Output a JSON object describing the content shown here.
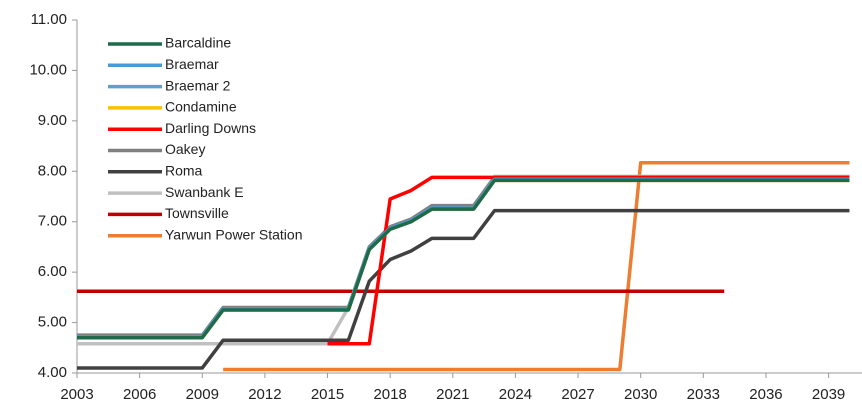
{
  "chart_data": {
    "type": "line",
    "x": [
      2003,
      2004,
      2005,
      2006,
      2007,
      2008,
      2009,
      2010,
      2011,
      2012,
      2013,
      2014,
      2015,
      2016,
      2017,
      2018,
      2019,
      2020,
      2021,
      2022,
      2023,
      2024,
      2025,
      2026,
      2027,
      2028,
      2029,
      2030,
      2031,
      2032,
      2033,
      2034,
      2035,
      2036,
      2037,
      2038,
      2039,
      2040
    ],
    "xlim": [
      2003,
      2040.6
    ],
    "xticks": [
      2003,
      2006,
      2009,
      2012,
      2015,
      2018,
      2021,
      2024,
      2027,
      2030,
      2033,
      2036,
      2039
    ],
    "ylim": [
      4,
      11
    ],
    "yticks": [
      {
        "value": 4,
        "label": "4.00"
      },
      {
        "value": 5,
        "label": "5.00"
      },
      {
        "value": 6,
        "label": "6.00"
      },
      {
        "value": 7,
        "label": "7.00"
      },
      {
        "value": 8,
        "label": "8.00"
      },
      {
        "value": 9,
        "label": "9.00"
      },
      {
        "value": 10,
        "label": "10.00"
      },
      {
        "value": 11,
        "label": "11.00"
      }
    ],
    "grid": false,
    "legend": "upper left",
    "series": [
      {
        "name": "Barcaldine",
        "color": "#1e6b4c",
        "values": [
          4.7,
          4.7,
          4.7,
          4.7,
          4.7,
          4.7,
          4.7,
          5.25,
          5.25,
          5.25,
          5.25,
          5.25,
          5.25,
          5.25,
          6.45,
          6.85,
          7.0,
          7.25,
          7.25,
          7.25,
          7.82,
          7.82,
          7.82,
          7.82,
          7.82,
          7.82,
          7.82,
          7.82,
          7.82,
          7.82,
          7.82,
          7.82,
          7.82,
          7.82,
          7.82,
          7.82,
          7.82,
          7.82
        ]
      },
      {
        "name": "Braemar",
        "color": "#4a9bd1",
        "values": [
          4.72,
          4.72,
          4.72,
          4.72,
          4.72,
          4.72,
          4.72,
          5.27,
          5.27,
          5.27,
          5.27,
          5.27,
          5.27,
          5.27,
          6.47,
          6.87,
          7.02,
          7.27,
          7.27,
          7.27,
          7.84,
          7.84,
          7.84,
          7.84,
          7.84,
          7.84,
          7.84,
          7.84,
          7.84,
          7.84,
          7.84,
          7.84,
          7.84,
          7.84,
          7.84,
          7.84,
          7.84,
          7.84
        ]
      },
      {
        "name": "Braemar 2",
        "color": "#5fa0c8",
        "values": [
          4.72,
          4.72,
          4.72,
          4.72,
          4.72,
          4.72,
          4.72,
          5.27,
          5.27,
          5.27,
          5.27,
          5.27,
          5.27,
          5.27,
          6.47,
          6.87,
          7.02,
          7.27,
          7.27,
          7.27,
          7.84,
          7.84,
          7.84,
          7.84,
          7.84,
          7.84,
          7.84,
          7.84,
          7.84,
          7.84,
          7.84,
          7.84,
          7.84,
          7.84,
          7.84,
          7.84,
          7.84,
          7.84
        ]
      },
      {
        "name": "Condamine",
        "color": "#ffc000",
        "values": [
          4.7,
          4.7,
          4.7,
          4.7,
          4.7,
          4.7,
          4.7,
          5.25,
          5.25,
          5.25,
          5.25,
          5.25,
          5.25,
          5.25,
          6.45,
          6.85,
          7.0,
          7.25,
          7.25,
          7.25,
          7.82,
          7.82,
          7.82,
          7.82,
          7.82,
          7.82,
          7.82,
          7.82,
          7.82,
          7.82,
          7.82,
          7.82,
          7.82,
          7.82,
          7.82,
          7.82,
          7.82,
          7.82
        ]
      },
      {
        "name": "Darling Downs",
        "color": "#ff0000",
        "values": [
          null,
          null,
          null,
          null,
          null,
          null,
          null,
          null,
          null,
          null,
          null,
          null,
          4.58,
          4.58,
          4.58,
          7.45,
          7.62,
          7.88,
          7.88,
          7.88,
          7.88,
          7.88,
          7.88,
          7.88,
          7.88,
          7.88,
          7.88,
          7.88,
          7.88,
          7.88,
          7.88,
          7.88,
          7.88,
          7.88,
          7.88,
          7.88,
          7.88,
          7.88
        ]
      },
      {
        "name": "Oakey",
        "color": "#808080",
        "values": [
          4.75,
          4.75,
          4.75,
          4.75,
          4.75,
          4.75,
          4.75,
          5.3,
          5.3,
          5.3,
          5.3,
          5.3,
          5.3,
          5.3,
          6.5,
          6.9,
          7.05,
          7.32,
          7.32,
          7.32,
          7.88,
          7.88,
          7.88,
          7.88,
          7.88,
          7.88,
          7.88,
          7.88,
          7.88,
          7.88,
          7.88,
          7.88,
          7.88,
          7.88,
          7.88,
          7.88,
          7.88,
          7.88
        ]
      },
      {
        "name": "Roma",
        "color": "#404040",
        "values": [
          4.1,
          4.1,
          4.1,
          4.1,
          4.1,
          4.1,
          4.1,
          4.65,
          4.65,
          4.65,
          4.65,
          4.65,
          4.65,
          4.65,
          5.82,
          6.25,
          6.42,
          6.67,
          6.67,
          6.67,
          7.22,
          7.22,
          7.22,
          7.22,
          7.22,
          7.22,
          7.22,
          7.22,
          7.22,
          7.22,
          7.22,
          7.22,
          7.22,
          7.22,
          7.22,
          7.22,
          7.22,
          7.22
        ]
      },
      {
        "name": "Swanbank E",
        "color": "#c0c0c0",
        "values": [
          4.58,
          4.58,
          4.58,
          4.58,
          4.58,
          4.58,
          4.58,
          4.58,
          4.58,
          4.58,
          4.58,
          4.58,
          4.58,
          5.3,
          6.5,
          6.9,
          7.05,
          7.32,
          7.32,
          7.32,
          7.9,
          7.9,
          7.9,
          7.9,
          7.9,
          7.9,
          7.9,
          7.9,
          7.9,
          7.9,
          7.9,
          7.9,
          7.9,
          7.9,
          7.9,
          7.9,
          7.9,
          7.9
        ]
      },
      {
        "name": "Townsville",
        "color": "#c00000",
        "values": [
          5.62,
          5.62,
          5.62,
          5.62,
          5.62,
          5.62,
          5.62,
          5.62,
          5.62,
          5.62,
          5.62,
          5.62,
          5.62,
          5.62,
          5.62,
          5.62,
          5.62,
          5.62,
          5.62,
          5.62,
          5.62,
          5.62,
          5.62,
          5.62,
          5.62,
          5.62,
          5.62,
          5.62,
          5.62,
          5.62,
          5.62,
          5.62,
          null,
          null,
          null,
          null,
          null,
          null
        ]
      },
      {
        "name": "Yarwun Power Station",
        "color": "#ed7d31",
        "values": [
          null,
          null,
          null,
          null,
          null,
          null,
          null,
          4.07,
          4.07,
          4.07,
          4.07,
          4.07,
          4.07,
          4.07,
          4.07,
          4.07,
          4.07,
          4.07,
          4.07,
          4.07,
          4.07,
          4.07,
          4.07,
          4.07,
          4.07,
          4.07,
          4.07,
          8.17,
          8.17,
          8.17,
          8.17,
          8.17,
          8.17,
          8.17,
          8.17,
          8.17,
          8.17,
          8.17
        ]
      }
    ]
  }
}
